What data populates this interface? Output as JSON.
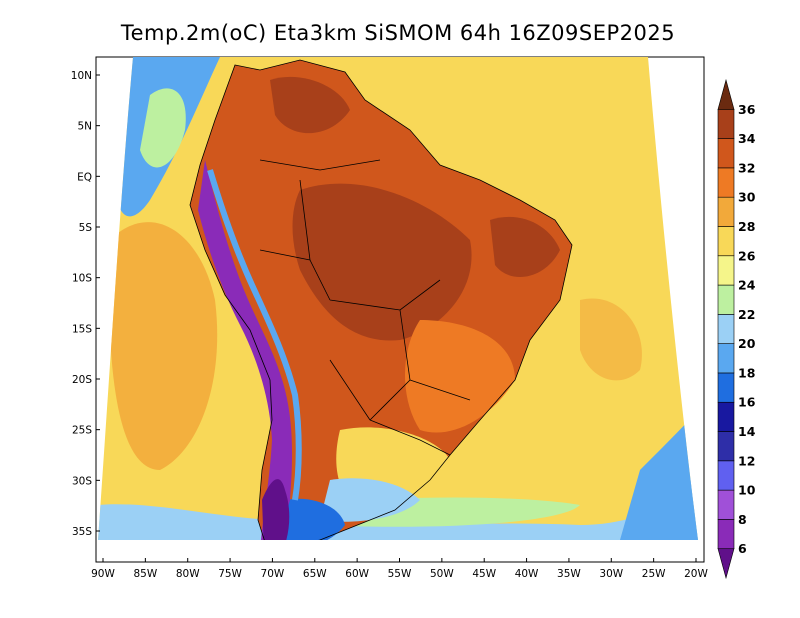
{
  "title": "Temp.2m(oC) Eta3km SiSMOM 64h 16Z09SEP2025",
  "map": {
    "variable": "2 m air temperature",
    "units": "oC",
    "model": "Eta3km SiSMOM",
    "forecast_hour": "64h",
    "valid_time": "16Z09SEP2025",
    "region": "South America",
    "lon_range": [
      -91,
      -20
    ],
    "lat_range": [
      -38,
      12
    ],
    "lon_ticks": [
      "90W",
      "85W",
      "80W",
      "75W",
      "70W",
      "65W",
      "60W",
      "55W",
      "50W",
      "45W",
      "40W",
      "35W",
      "30W",
      "25W",
      "20W"
    ],
    "lat_ticks": [
      "10N",
      "5N",
      "EQ",
      "5S",
      "10S",
      "15S",
      "20S",
      "25S",
      "30S",
      "35S"
    ],
    "lon_tick_values": [
      -90,
      -85,
      -80,
      -75,
      -70,
      -65,
      -60,
      -55,
      -50,
      -45,
      -40,
      -35,
      -30,
      -25,
      -20
    ],
    "lat_tick_values": [
      10,
      5,
      0,
      -5,
      -10,
      -15,
      -20,
      -25,
      -30,
      -35
    ],
    "overlays": [
      "coastlines",
      "country borders",
      "state borders"
    ]
  },
  "colorbar": {
    "orientation": "vertical",
    "placement": "right",
    "labels": [
      "6",
      "8",
      "10",
      "12",
      "14",
      "16",
      "18",
      "20",
      "22",
      "24",
      "26",
      "28",
      "30",
      "32",
      "34",
      "36"
    ],
    "values": [
      6,
      8,
      10,
      12,
      14,
      16,
      18,
      20,
      22,
      24,
      26,
      28,
      30,
      32,
      34,
      36
    ],
    "colors": [
      "#60108a",
      "#8a2bb8",
      "#a050d8",
      "#6060f0",
      "#2e2ea8",
      "#1818a0",
      "#1f6ee0",
      "#5aa8f0",
      "#9bd0f5",
      "#bdf0a0",
      "#f5f58a",
      "#f8d858",
      "#f2a93a",
      "#ee7a24",
      "#d0571c",
      "#a8401a",
      "#6a2a10"
    ]
  }
}
